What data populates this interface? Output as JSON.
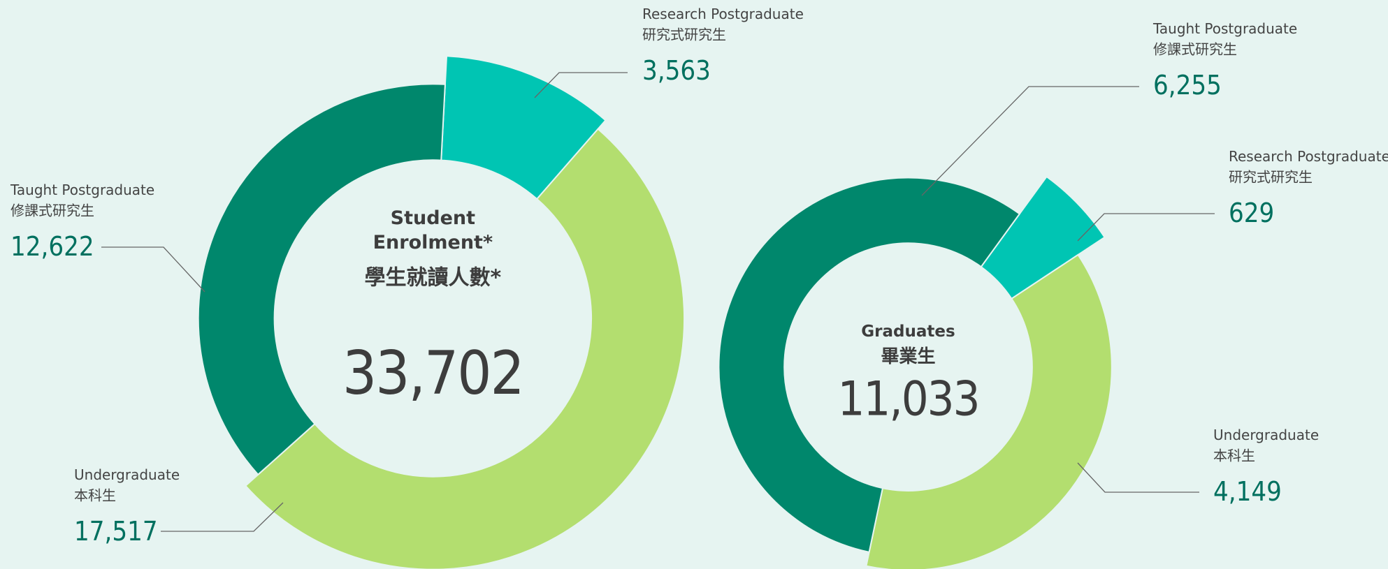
{
  "chart_data": [
    {
      "type": "donut",
      "title": "Student Enrolment*",
      "title_zh": "學生就讀人數*",
      "total": 33702,
      "total_label": "33,702",
      "categories": [
        "Research Postgraduate",
        "Undergraduate",
        "Taught Postgraduate"
      ],
      "categories_zh": [
        "研究式研究生",
        "本科生",
        "修課式研究生"
      ],
      "values": [
        3563,
        17517,
        12622
      ],
      "value_labels": [
        "3,563",
        "17,517",
        "12,622"
      ],
      "colors": [
        "#00c5b3",
        "#b3de6f",
        "#00876c"
      ]
    },
    {
      "type": "donut",
      "title": "Graduates",
      "title_zh": "畢業生",
      "total": 11033,
      "total_label": "11,033",
      "categories": [
        "Research Postgraduate",
        "Undergraduate",
        "Taught Postgraduate"
      ],
      "categories_zh": [
        "研究式研究生",
        "本科生",
        "修課式研究生"
      ],
      "values": [
        629,
        4149,
        6255
      ],
      "value_labels": [
        "629",
        "4,149",
        "6,255"
      ],
      "colors": [
        "#00c5b3",
        "#b3de6f",
        "#00876c"
      ]
    }
  ]
}
